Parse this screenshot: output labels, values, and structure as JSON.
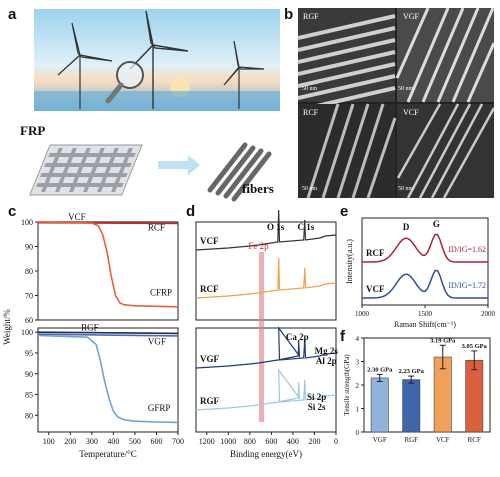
{
  "panels": {
    "a": {
      "letter": "a",
      "frp_label": "FRP",
      "fibers_label": "fibers"
    },
    "b": {
      "letter": "b",
      "tl": "RGF",
      "tr": "VGF",
      "bl": "RCF",
      "br": "VCF",
      "scale": "50 nm"
    },
    "c": {
      "letter": "c"
    },
    "d": {
      "letter": "d"
    },
    "e": {
      "letter": "e"
    },
    "f": {
      "letter": "f"
    }
  },
  "chart_data": [
    {
      "id": "c",
      "type": "line",
      "xlabel": "Temperature/°C",
      "ylabel": "Weight/%",
      "xlim": [
        50,
        700
      ],
      "x_ticks": [
        100,
        200,
        300,
        400,
        500,
        600,
        700
      ],
      "top": {
        "ylim": [
          60,
          100
        ],
        "y_ticks": [
          60,
          70,
          80,
          90,
          100
        ],
        "series": [
          {
            "name": "VCF",
            "color": "#555555",
            "x": [
              50,
              700
            ],
            "y": [
              100,
              100
            ]
          },
          {
            "name": "RCF",
            "color": "#cc2222",
            "x": [
              50,
              700
            ],
            "y": [
              99.7,
              99.4
            ]
          },
          {
            "name": "CFRP",
            "color": "#e8603a",
            "x": [
              50,
              300,
              330,
              350,
              370,
              390,
              410,
              430,
              450,
              500,
              600,
              700
            ],
            "y": [
              100,
              99.6,
              98.5,
              95,
              88,
              78,
              70,
              67,
              66.2,
              65.8,
              65.6,
              65.4
            ]
          }
        ],
        "labels": [
          "VCF",
          "RCF",
          "CFRP"
        ]
      },
      "bottom": {
        "ylim": [
          76,
          101
        ],
        "y_ticks": [
          80,
          85,
          90,
          95,
          100
        ],
        "series": [
          {
            "name": "RGF",
            "color": "#222a55",
            "x": [
              50,
              700
            ],
            "y": [
              100,
              99.7
            ]
          },
          {
            "name": "VGF",
            "color": "#4a6fa8",
            "x": [
              50,
              700
            ],
            "y": [
              99.5,
              99.1
            ]
          },
          {
            "name": "GFRP",
            "color": "#6fa3cf",
            "x": [
              50,
              280,
              320,
              340,
              360,
              380,
              400,
              420,
              450,
              500,
              600,
              700
            ],
            "y": [
              99.2,
              98.8,
              97,
              93,
              88,
              84,
              81,
              79.6,
              78.9,
              78.6,
              78.4,
              78.3
            ]
          }
        ],
        "labels": [
          "RGF",
          "VGF",
          "GFRP"
        ]
      }
    },
    {
      "id": "d",
      "type": "line",
      "xlabel": "Binding energy(eV)",
      "x_ticks": [
        1200,
        1000,
        800,
        600,
        400,
        200,
        0
      ],
      "peak_labels": [
        "O 1s",
        "C 1s",
        "Fe 2p",
        "Ca 2p",
        "Mg 2s",
        "Al 2p",
        "Si 2p",
        "Si 2s"
      ],
      "series": [
        {
          "name": "VCF",
          "color": "#333333"
        },
        {
          "name": "RCF",
          "color": "#f0a048"
        },
        {
          "name": "VGF",
          "color": "#233a7a"
        },
        {
          "name": "RGF",
          "color": "#9ec9e0"
        }
      ]
    },
    {
      "id": "e",
      "type": "line",
      "xlabel": "Raman Shift(cm⁻¹)",
      "ylabel": "Intensity(a.u.)",
      "xlim": [
        1000,
        2000
      ],
      "x_ticks": [
        1000,
        1500,
        2000
      ],
      "peaks": [
        "D",
        "G"
      ],
      "series": [
        {
          "name": "RCF",
          "color": "#a8243a",
          "annotation": "ID/IG=1.62"
        },
        {
          "name": "VCF",
          "color": "#2f4f96",
          "annotation": "ID/IG=1.72"
        }
      ]
    },
    {
      "id": "f",
      "type": "bar",
      "ylabel": "Tensile strength(GPa)",
      "ylim": [
        0,
        4
      ],
      "y_ticks": [
        0,
        1,
        2,
        3,
        4
      ],
      "categories": [
        "VGF",
        "RGF",
        "VCF",
        "RCF"
      ],
      "values": [
        2.3,
        2.23,
        3.19,
        3.05
      ],
      "errors": [
        0.15,
        0.15,
        0.5,
        0.4
      ],
      "value_labels": [
        "2.30 GPa",
        "2.23 GPa",
        "3.19 GPa",
        "3.05 GPa"
      ],
      "colors": [
        "#8fb3da",
        "#3e66a8",
        "#f0a058",
        "#d9603c"
      ]
    }
  ]
}
